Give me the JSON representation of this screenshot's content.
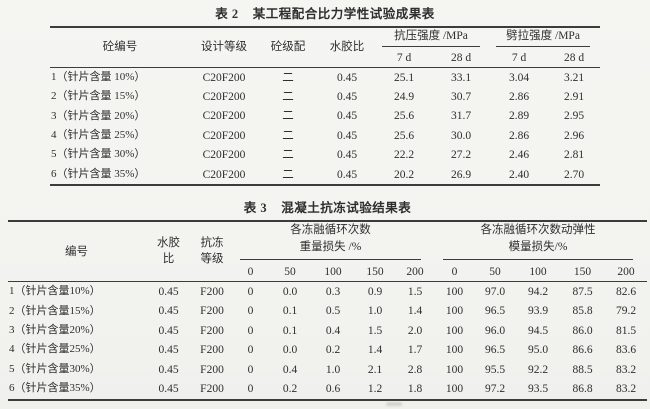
{
  "table2": {
    "label": "表 2",
    "title": "某工程配合比力学性试验成果表",
    "header": {
      "concrete_no": "砼编号",
      "design_grade": "设计等级",
      "gradation": "砼级配",
      "water_binder": "水胶比",
      "compressive_group": "抗压强度 /MPa",
      "splitting_group": "劈拉强度 /MPa",
      "sub_7d": "7 d",
      "sub_28d": "28 d"
    },
    "rows": [
      [
        "1（针片含量 10%）",
        "C20F200",
        "二",
        "0.45",
        "25.1",
        "33.1",
        "3.04",
        "3.21"
      ],
      [
        "2（针片含量 15%）",
        "C20F200",
        "二",
        "0.45",
        "24.9",
        "30.7",
        "2.86",
        "2.91"
      ],
      [
        "3（针片含量 20%）",
        "C20F200",
        "二",
        "0.45",
        "25.6",
        "31.7",
        "2.89",
        "2.95"
      ],
      [
        "4（针片含量 25%）",
        "C20F200",
        "二",
        "0.45",
        "25.6",
        "30.0",
        "2.86",
        "2.96"
      ],
      [
        "5（针片含量 30%）",
        "C20F200",
        "二",
        "0.45",
        "22.2",
        "27.2",
        "2.46",
        "2.81"
      ],
      [
        "6（针片含量 35%）",
        "C20F200",
        "二",
        "0.45",
        "20.2",
        "26.9",
        "2.40",
        "2.70"
      ]
    ]
  },
  "table3": {
    "label": "表 3",
    "title": "混凝土抗冻试验结果表",
    "header": {
      "no": "编号",
      "water_binder": "水胶比",
      "frost_grade": "抗冻等级",
      "mass_group_line1": "各冻融循环次数",
      "mass_group_line2": "重量损失 /%",
      "modulus_group_line1": "各冻融循环次数动弹性",
      "modulus_group_line2": "模量损失/%",
      "cycles": [
        "0",
        "50",
        "100",
        "150",
        "200"
      ]
    },
    "rows": [
      [
        "1（针片含量10%）",
        "0.45",
        "F200",
        "0",
        "0.0",
        "0.3",
        "0.9",
        "1.5",
        "100",
        "97.0",
        "94.2",
        "87.5",
        "82.6"
      ],
      [
        "2（针片含量15%）",
        "0.45",
        "F200",
        "0",
        "0.1",
        "0.5",
        "1.0",
        "1.4",
        "100",
        "96.5",
        "93.9",
        "85.8",
        "79.2"
      ],
      [
        "3（针片含量20%）",
        "0.45",
        "F200",
        "0",
        "0.1",
        "0.4",
        "1.5",
        "2.0",
        "100",
        "96.0",
        "94.5",
        "86.0",
        "81.5"
      ],
      [
        "4（针片含量25%）",
        "0.45",
        "F200",
        "0",
        "0.0",
        "0.2",
        "1.4",
        "1.7",
        "100",
        "96.5",
        "95.0",
        "86.6",
        "83.6"
      ],
      [
        "5（针片含量30%）",
        "0.45",
        "F200",
        "0",
        "0.4",
        "1.0",
        "2.1",
        "2.8",
        "100",
        "95.5",
        "92.2",
        "88.5",
        "83.2"
      ],
      [
        "6（针片含量35%）",
        "0.45",
        "F200",
        "0",
        "0.2",
        "0.6",
        "1.2",
        "1.8",
        "100",
        "97.2",
        "93.5",
        "86.8",
        "83.2"
      ]
    ]
  }
}
